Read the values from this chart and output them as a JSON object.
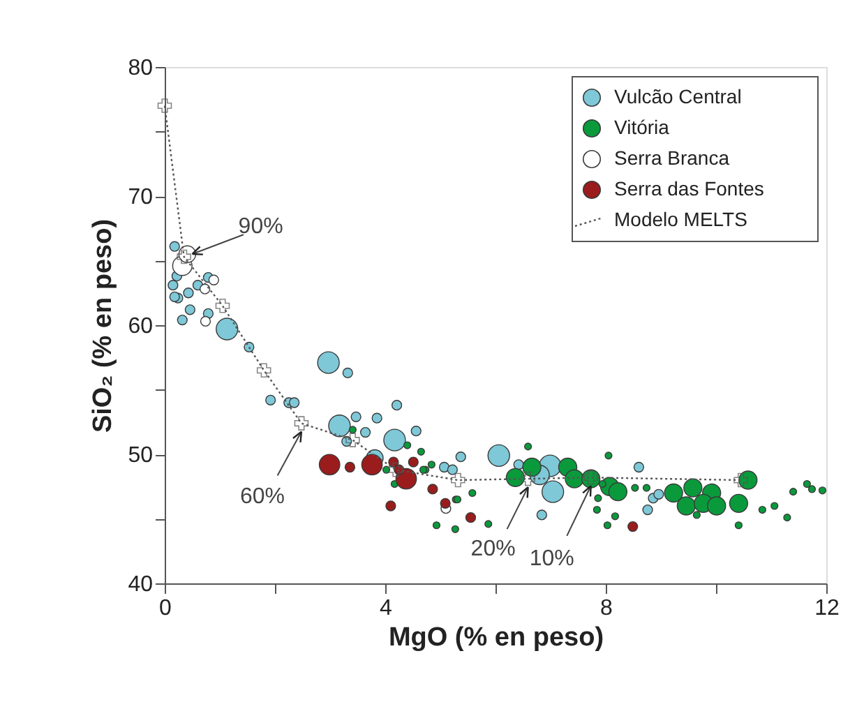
{
  "chart_data": {
    "type": "bubble",
    "xlabel": "MgO (% en peso)",
    "ylabel": "SiO₂ (% en peso)",
    "xlim": [
      0,
      12
    ],
    "xticks": [
      0,
      {
        "value": 2,
        "label": null
      },
      4,
      {
        "value": 6,
        "label": null
      },
      8,
      {
        "value": 10,
        "label": null
      },
      12
    ],
    "ylim": [
      40,
      80
    ],
    "yticks": [
      40,
      {
        "value": 45,
        "label": null
      },
      50,
      {
        "value": 55,
        "label": null
      },
      60,
      {
        "value": 65,
        "label": null
      },
      70,
      {
        "value": 75,
        "label": null
      },
      80
    ],
    "grid": false,
    "legend": "top right",
    "series": [
      {
        "name": "Vulcão Central",
        "color": "#7ec8d8",
        "x": [
          1.13,
          2.97,
          3.17,
          4.17,
          6.06,
          6.99,
          7.04,
          6.8,
          3.81,
          0.18,
          0.22,
          0.15,
          0.43,
          0.79,
          0.6,
          0.24,
          0.18,
          0.46,
          0.32,
          0.79,
          1.53,
          3.32,
          1.92,
          2.25,
          2.35,
          3.47,
          3.85,
          3.64,
          3.3,
          4.21,
          4.56,
          5.07,
          5.22,
          5.37,
          6.84,
          8.6,
          8.86,
          8.76,
          8.96,
          6.42
        ],
        "values": [
          59.7,
          57.1,
          52.2,
          51.1,
          49.9,
          49.1,
          47.1,
          48.4,
          49.7,
          66.1,
          63.8,
          63.1,
          62.5,
          63.7,
          63.1,
          62.1,
          62.2,
          61.2,
          60.4,
          60.9,
          58.3,
          56.3,
          54.2,
          54.0,
          54.0,
          52.9,
          52.8,
          51.7,
          51.0,
          53.8,
          51.8,
          49.0,
          48.8,
          49.8,
          45.3,
          49.0,
          46.6,
          45.7,
          46.9,
          49.2
        ],
        "sizes": [
          1,
          1,
          1,
          1,
          1,
          1,
          1,
          0.8,
          0.6,
          0.2,
          0.2,
          0.2,
          0.2,
          0.2,
          0.2,
          0.2,
          0.2,
          0.2,
          0.2,
          0.2,
          0.2,
          0.2,
          0.2,
          0.2,
          0.2,
          0.2,
          0.2,
          0.2,
          0.2,
          0.2,
          0.2,
          0.2,
          0.2,
          0.2,
          0.2,
          0.2,
          0.2,
          0.2,
          0.2,
          0.2
        ]
      },
      {
        "name": "Vitória",
        "color": "#0a9a3c",
        "x": [
          6.36,
          6.66,
          7.31,
          7.43,
          7.73,
          8.07,
          8.22,
          9.23,
          9.58,
          9.46,
          9.92,
          9.77,
          10.01,
          10.41,
          10.58,
          6.59,
          8.05,
          4.65,
          4.73,
          5.58,
          5.28,
          4.93,
          5.27,
          5.87,
          7.86,
          7.84,
          8.17,
          8.03,
          8.53,
          8.74,
          10.84,
          11.06,
          11.29,
          11.4,
          11.65,
          11.74,
          11.93,
          10.41,
          9.65,
          7.94,
          3.41,
          4.4,
          4.84,
          4.69,
          4.17,
          5.31,
          4.02
        ],
        "values": [
          48.2,
          49.0,
          49.0,
          48.1,
          48.1,
          47.5,
          47.1,
          47.0,
          47.4,
          46.0,
          47.0,
          46.2,
          46.0,
          46.2,
          48.0,
          50.6,
          49.9,
          50.2,
          48.8,
          47.0,
          46.5,
          44.5,
          44.2,
          44.6,
          46.6,
          45.7,
          45.2,
          44.5,
          47.4,
          47.4,
          45.7,
          46.0,
          45.1,
          47.1,
          47.7,
          47.3,
          47.2,
          44.5,
          45.3,
          47.7,
          51.9,
          50.7,
          49.2,
          48.8,
          47.7,
          46.5,
          48.8
        ],
        "sizes": [
          0.7,
          0.7,
          0.7,
          0.7,
          0.7,
          0.7,
          0.7,
          0.7,
          0.7,
          0.7,
          0.7,
          0.7,
          0.7,
          0.7,
          0.7,
          0.1,
          0.1,
          0.1,
          0.1,
          0.1,
          0.1,
          0.1,
          0.1,
          0.1,
          0.1,
          0.1,
          0.1,
          0.1,
          0.1,
          0.1,
          0.1,
          0.1,
          0.1,
          0.1,
          0.1,
          0.1,
          0.1,
          0.1,
          0.1,
          0.1,
          0.1,
          0.1,
          0.1,
          0.1,
          0.1,
          0.1,
          0.1
        ]
      },
      {
        "name": "Serra Branca",
        "color": "#ffffff",
        "x": [
          0.32,
          0.41,
          0.73,
          0.74,
          0.89,
          5.1
        ],
        "values": [
          64.6,
          65.5,
          62.8,
          60.3,
          63.5,
          45.8
        ],
        "sizes": [
          0.8,
          0.6,
          0.2,
          0.2,
          0.2,
          0.2
        ]
      },
      {
        "name": "Serra das Fontes",
        "color": "#9b1c1c",
        "x": [
          2.99,
          3.76,
          4.38,
          3.36,
          4.15,
          4.51,
          4.1,
          4.86,
          5.09,
          5.55,
          4.25,
          8.49
        ],
        "values": [
          49.2,
          49.2,
          48.1,
          49.0,
          49.4,
          49.4,
          46.0,
          47.3,
          46.2,
          45.1,
          48.8,
          44.4
        ],
        "sizes": [
          0.9,
          0.9,
          0.9,
          0.2,
          0.2,
          0.2,
          0.2,
          0.2,
          0.2,
          0.2,
          0.2,
          0.2
        ]
      },
      {
        "name": "Modelo MELTS",
        "type": "line",
        "line_style": "dotted",
        "marker": "cross",
        "color": "#555555",
        "x": [
          0,
          0.35,
          1.05,
          1.8,
          2.48,
          3.41,
          4.19,
          5.32,
          6.59,
          7.73,
          10.45
        ],
        "values": [
          77,
          65.3,
          61.5,
          56.5,
          52.4,
          51.1,
          48.8,
          48.0,
          48.1,
          48.2,
          48.0
        ]
      }
    ],
    "annotations": [
      {
        "text": "90%",
        "x": 0.35,
        "y": 65.3
      },
      {
        "text": "60%",
        "x": 2.48,
        "y": 52.4
      },
      {
        "text": "20%",
        "x": 6.59,
        "y": 48.1
      },
      {
        "text": "10%",
        "x": 7.73,
        "y": 48.2
      }
    ]
  }
}
